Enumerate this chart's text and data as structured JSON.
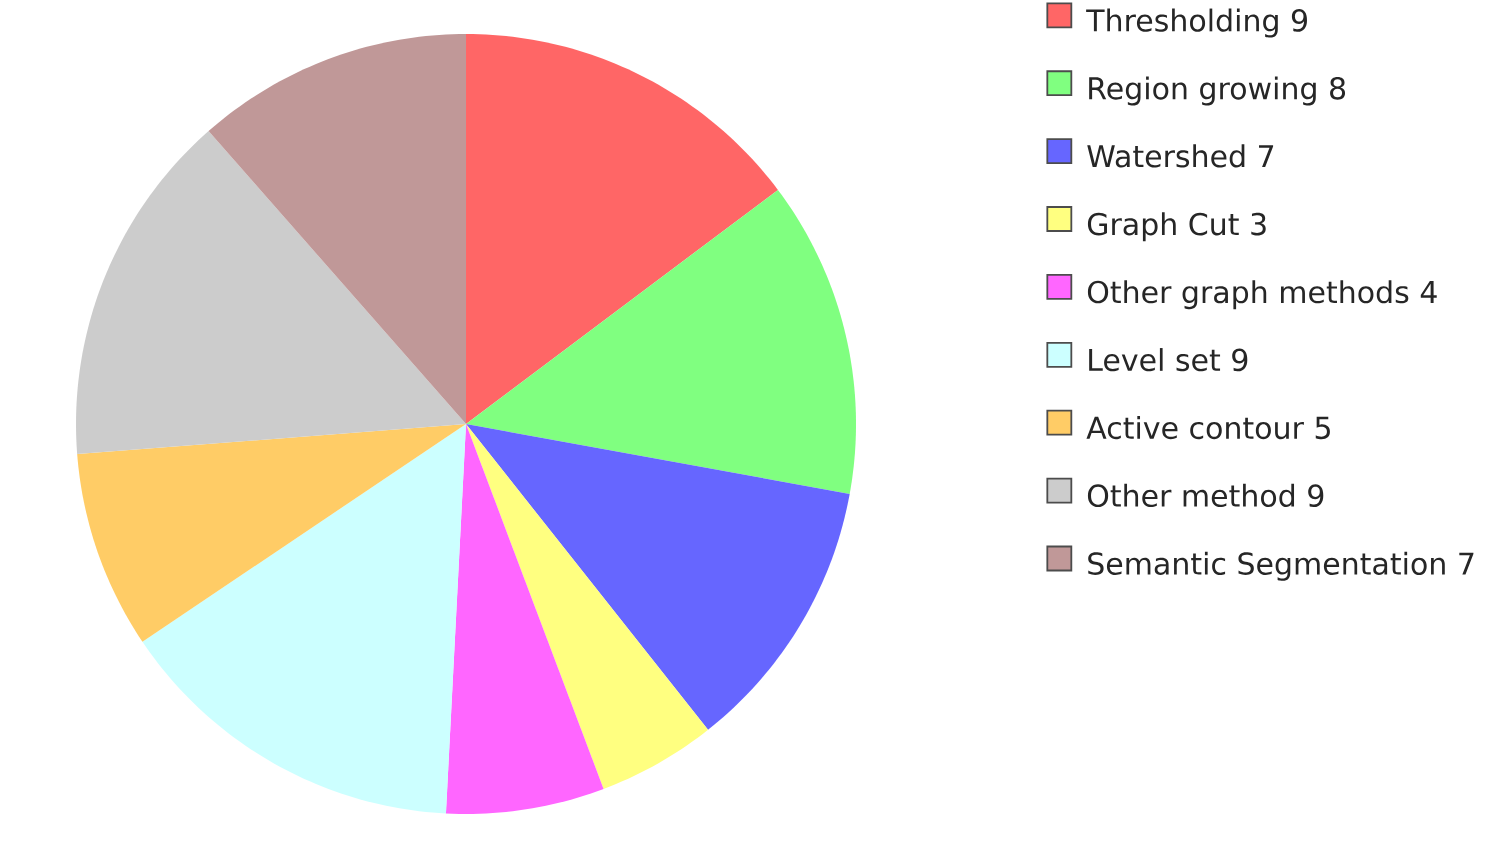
{
  "chart_data": {
    "type": "pie",
    "categories": [
      "Thresholding 9",
      "Region growing 8",
      "Watershed 7",
      "Graph Cut 3",
      "Other graph methods 4",
      "Level set 9",
      "Active contour 5",
      "Other method 9",
      "Semantic Segmentation 7"
    ],
    "values": [
      9,
      8,
      7,
      3,
      4,
      9,
      5,
      9,
      7
    ],
    "colors": [
      "#ff6666",
      "#80ff80",
      "#6666ff",
      "#ffff80",
      "#ff66ff",
      "#ccffff",
      "#ffcc66",
      "#cccccc",
      "#c09898"
    ],
    "legend": "right"
  }
}
